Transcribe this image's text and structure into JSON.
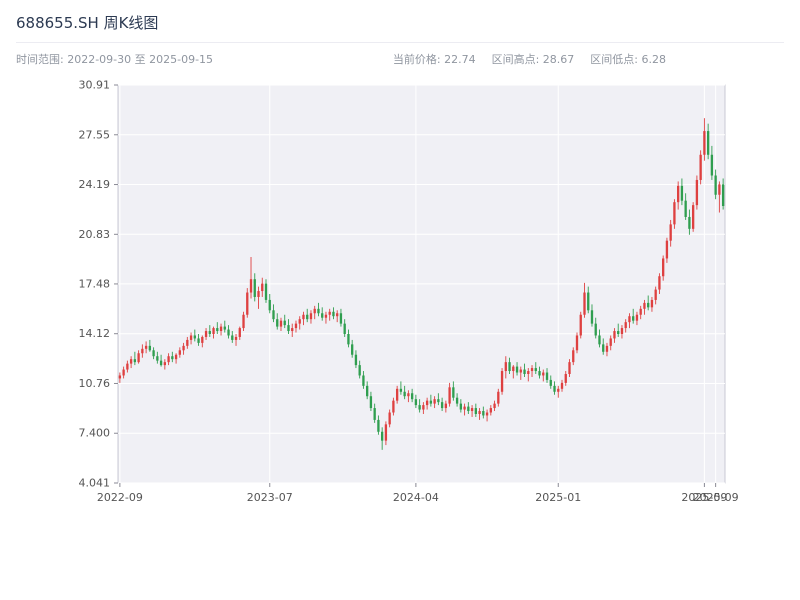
{
  "header": {
    "title": "688655.SH 周K线图",
    "range_label": "时间范围: 2022-09-30 至 2025-09-15",
    "stats": [
      "当前价格: 22.74",
      "区间高点: 28.67",
      "区间低点: 6.28"
    ]
  },
  "chart_data": {
    "type": "candlestick",
    "title": "688655.SH 周K线图",
    "symbol": "688655.SH",
    "interval": "weekly",
    "current_price": 22.74,
    "range_high": 28.67,
    "range_low": 6.28,
    "date_start": "2022-09-30",
    "date_end": "2025-09-15",
    "ylim": [
      4.041,
      30.91
    ],
    "y_ticks": [
      "30.91",
      "27.55",
      "24.19",
      "20.83",
      "17.48",
      "14.12",
      "10.76",
      "7.400",
      "4.041"
    ],
    "y_tick_values": [
      30.91,
      27.55,
      24.19,
      20.83,
      17.48,
      14.12,
      10.76,
      7.4,
      4.041
    ],
    "x_ticks": [
      {
        "index": 0,
        "label": "2022-09"
      },
      {
        "index": 40,
        "label": "2023-07"
      },
      {
        "index": 79,
        "label": "2024-04"
      },
      {
        "index": 117,
        "label": "2025-01"
      },
      {
        "index": 156,
        "label": "2025-09"
      },
      {
        "index": 159,
        "label": "2025-09"
      }
    ],
    "grid": true,
    "legend": false,
    "colors": {
      "up": "#de4040",
      "down": "#2f9e4f",
      "plot_bg": "#f0f0f5",
      "grid": "#ffffff",
      "axis": "#c9c9d4",
      "tick_text": "#555555",
      "title_text": "#2c3a52",
      "subtitle_text": "#9096a0"
    },
    "candles": [
      [
        11.1,
        11.5,
        10.8,
        11.3
      ],
      [
        11.3,
        11.9,
        11.1,
        11.7
      ],
      [
        11.7,
        12.3,
        11.5,
        12.1
      ],
      [
        12.1,
        12.6,
        11.8,
        12.4
      ],
      [
        12.4,
        12.9,
        12.0,
        12.2
      ],
      [
        12.2,
        13.0,
        12.1,
        12.8
      ],
      [
        12.8,
        13.4,
        12.5,
        13.1
      ],
      [
        13.1,
        13.6,
        12.8,
        13.3
      ],
      [
        13.3,
        13.7,
        12.9,
        13.0
      ],
      [
        13.0,
        13.2,
        12.4,
        12.6
      ],
      [
        12.6,
        12.9,
        12.1,
        12.3
      ],
      [
        12.3,
        12.7,
        11.9,
        12.0
      ],
      [
        12.0,
        12.4,
        11.7,
        12.2
      ],
      [
        12.2,
        12.8,
        12.0,
        12.6
      ],
      [
        12.6,
        12.9,
        12.2,
        12.4
      ],
      [
        12.4,
        12.8,
        12.1,
        12.7
      ],
      [
        12.7,
        13.2,
        12.5,
        13.0
      ],
      [
        13.0,
        13.5,
        12.7,
        13.3
      ],
      [
        13.3,
        13.9,
        13.1,
        13.7
      ],
      [
        13.7,
        14.2,
        13.4,
        14.0
      ],
      [
        14.0,
        14.4,
        13.6,
        13.8
      ],
      [
        13.8,
        14.1,
        13.3,
        13.5
      ],
      [
        13.5,
        14.0,
        13.2,
        13.9
      ],
      [
        13.9,
        14.5,
        13.7,
        14.3
      ],
      [
        14.3,
        14.7,
        13.9,
        14.1
      ],
      [
        14.1,
        14.6,
        13.8,
        14.5
      ],
      [
        14.5,
        14.9,
        14.1,
        14.3
      ],
      [
        14.3,
        14.8,
        14.0,
        14.6
      ],
      [
        14.6,
        15.0,
        14.2,
        14.4
      ],
      [
        14.4,
        14.7,
        13.8,
        14.0
      ],
      [
        14.0,
        14.3,
        13.5,
        13.7
      ],
      [
        13.7,
        14.1,
        13.3,
        13.9
      ],
      [
        13.9,
        14.6,
        13.7,
        14.5
      ],
      [
        14.5,
        15.6,
        14.3,
        15.4
      ],
      [
        15.4,
        17.2,
        15.2,
        16.9
      ],
      [
        16.9,
        19.3,
        16.5,
        17.8
      ],
      [
        17.8,
        18.2,
        16.3,
        16.6
      ],
      [
        16.6,
        17.3,
        15.8,
        17.0
      ],
      [
        17.0,
        17.9,
        16.6,
        17.5
      ],
      [
        17.5,
        17.8,
        16.2,
        16.4
      ],
      [
        16.4,
        16.8,
        15.5,
        15.7
      ],
      [
        15.7,
        16.1,
        14.9,
        15.1
      ],
      [
        15.1,
        15.5,
        14.4,
        14.6
      ],
      [
        14.6,
        15.2,
        14.3,
        15.0
      ],
      [
        15.0,
        15.4,
        14.5,
        14.7
      ],
      [
        14.7,
        15.1,
        14.1,
        14.3
      ],
      [
        14.3,
        14.8,
        13.9,
        14.5
      ],
      [
        14.5,
        15.0,
        14.2,
        14.8
      ],
      [
        14.8,
        15.3,
        14.4,
        15.1
      ],
      [
        15.1,
        15.6,
        14.7,
        15.4
      ],
      [
        15.4,
        15.8,
        14.9,
        15.1
      ],
      [
        15.1,
        15.7,
        14.8,
        15.5
      ],
      [
        15.5,
        16.0,
        15.1,
        15.8
      ],
      [
        15.8,
        16.2,
        15.3,
        15.5
      ],
      [
        15.5,
        15.9,
        15.0,
        15.2
      ],
      [
        15.2,
        15.6,
        14.8,
        15.4
      ],
      [
        15.4,
        15.8,
        15.0,
        15.6
      ],
      [
        15.6,
        15.9,
        15.1,
        15.3
      ],
      [
        15.3,
        15.7,
        14.9,
        15.5
      ],
      [
        15.5,
        15.8,
        14.6,
        14.8
      ],
      [
        14.8,
        15.1,
        13.9,
        14.1
      ],
      [
        14.1,
        14.4,
        13.2,
        13.4
      ],
      [
        13.4,
        13.7,
        12.5,
        12.7
      ],
      [
        12.7,
        13.0,
        11.8,
        12.0
      ],
      [
        12.0,
        12.3,
        11.1,
        11.3
      ],
      [
        11.3,
        11.6,
        10.4,
        10.6
      ],
      [
        10.6,
        10.9,
        9.7,
        9.9
      ],
      [
        9.9,
        10.2,
        8.9,
        9.1
      ],
      [
        9.1,
        9.4,
        8.1,
        8.3
      ],
      [
        8.3,
        8.6,
        7.3,
        7.5
      ],
      [
        7.5,
        7.8,
        6.28,
        6.9
      ],
      [
        6.9,
        8.2,
        6.6,
        8.0
      ],
      [
        8.0,
        9.0,
        7.8,
        8.8
      ],
      [
        8.8,
        9.8,
        8.6,
        9.6
      ],
      [
        9.6,
        10.6,
        9.4,
        10.4
      ],
      [
        10.4,
        10.9,
        10.0,
        10.2
      ],
      [
        10.2,
        10.6,
        9.7,
        9.9
      ],
      [
        9.9,
        10.3,
        9.5,
        10.1
      ],
      [
        10.1,
        10.4,
        9.5,
        9.7
      ],
      [
        9.7,
        10.0,
        9.1,
        9.3
      ],
      [
        9.3,
        9.7,
        8.8,
        9.0
      ],
      [
        9.0,
        9.5,
        8.7,
        9.3
      ],
      [
        9.3,
        9.8,
        9.0,
        9.6
      ],
      [
        9.6,
        10.0,
        9.2,
        9.4
      ],
      [
        9.4,
        9.9,
        9.1,
        9.7
      ],
      [
        9.7,
        10.1,
        9.3,
        9.5
      ],
      [
        9.5,
        9.8,
        8.9,
        9.1
      ],
      [
        9.1,
        9.6,
        8.8,
        9.4
      ],
      [
        9.4,
        10.8,
        9.2,
        10.5
      ],
      [
        10.5,
        10.9,
        9.6,
        9.8
      ],
      [
        9.8,
        10.1,
        9.2,
        9.4
      ],
      [
        9.4,
        9.7,
        8.8,
        9.0
      ],
      [
        9.0,
        9.4,
        8.6,
        9.2
      ],
      [
        9.2,
        9.5,
        8.7,
        8.9
      ],
      [
        8.9,
        9.3,
        8.5,
        9.1
      ],
      [
        9.1,
        9.4,
        8.5,
        8.7
      ],
      [
        8.7,
        9.1,
        8.3,
        8.9
      ],
      [
        8.9,
        9.2,
        8.4,
        8.6
      ],
      [
        8.6,
        9.0,
        8.2,
        8.8
      ],
      [
        8.8,
        9.3,
        8.6,
        9.1
      ],
      [
        9.1,
        9.6,
        8.9,
        9.4
      ],
      [
        9.4,
        10.4,
        9.2,
        10.2
      ],
      [
        10.2,
        11.8,
        10.0,
        11.6
      ],
      [
        11.6,
        12.6,
        11.1,
        12.2
      ],
      [
        12.2,
        12.5,
        11.4,
        11.6
      ],
      [
        11.6,
        12.0,
        11.1,
        11.9
      ],
      [
        11.9,
        12.2,
        11.3,
        11.5
      ],
      [
        11.5,
        11.9,
        11.0,
        11.7
      ],
      [
        11.7,
        12.1,
        11.2,
        11.4
      ],
      [
        11.4,
        11.8,
        10.9,
        11.6
      ],
      [
        11.6,
        12.0,
        11.2,
        11.8
      ],
      [
        11.8,
        12.2,
        11.4,
        11.6
      ],
      [
        11.6,
        11.9,
        11.1,
        11.3
      ],
      [
        11.3,
        11.7,
        10.9,
        11.5
      ],
      [
        11.5,
        11.8,
        10.8,
        11.0
      ],
      [
        11.0,
        11.3,
        10.4,
        10.6
      ],
      [
        10.6,
        10.9,
        10.0,
        10.2
      ],
      [
        10.2,
        10.6,
        9.8,
        10.4
      ],
      [
        10.4,
        11.0,
        10.2,
        10.8
      ],
      [
        10.8,
        11.6,
        10.6,
        11.4
      ],
      [
        11.4,
        12.4,
        11.2,
        12.2
      ],
      [
        12.2,
        13.2,
        12.0,
        13.0
      ],
      [
        13.0,
        14.2,
        12.8,
        14.0
      ],
      [
        14.0,
        15.6,
        13.8,
        15.4
      ],
      [
        15.4,
        17.55,
        15.2,
        16.9
      ],
      [
        16.9,
        17.3,
        15.5,
        15.7
      ],
      [
        15.7,
        16.1,
        14.6,
        14.8
      ],
      [
        14.8,
        15.2,
        13.8,
        14.0
      ],
      [
        14.0,
        14.4,
        13.2,
        13.4
      ],
      [
        13.4,
        13.8,
        12.7,
        12.9
      ],
      [
        12.9,
        13.5,
        12.6,
        13.3
      ],
      [
        13.3,
        14.0,
        13.0,
        13.8
      ],
      [
        13.8,
        14.5,
        13.5,
        14.3
      ],
      [
        14.3,
        14.8,
        13.9,
        14.1
      ],
      [
        14.1,
        14.7,
        13.8,
        14.5
      ],
      [
        14.5,
        15.1,
        14.2,
        14.9
      ],
      [
        14.9,
        15.5,
        14.5,
        15.3
      ],
      [
        15.3,
        15.8,
        14.8,
        15.0
      ],
      [
        15.0,
        15.6,
        14.7,
        15.4
      ],
      [
        15.4,
        16.0,
        15.1,
        15.8
      ],
      [
        15.8,
        16.4,
        15.4,
        16.2
      ],
      [
        16.2,
        16.7,
        15.7,
        15.9
      ],
      [
        15.9,
        16.6,
        15.6,
        16.4
      ],
      [
        16.4,
        17.3,
        16.1,
        17.1
      ],
      [
        17.1,
        18.2,
        16.8,
        18.0
      ],
      [
        18.0,
        19.4,
        17.7,
        19.2
      ],
      [
        19.2,
        20.6,
        18.9,
        20.4
      ],
      [
        20.4,
        21.8,
        20.0,
        21.5
      ],
      [
        21.5,
        23.2,
        21.2,
        23.0
      ],
      [
        23.0,
        24.4,
        22.5,
        24.1
      ],
      [
        24.1,
        24.6,
        22.8,
        23.1
      ],
      [
        23.1,
        23.6,
        21.8,
        22.0
      ],
      [
        22.0,
        22.5,
        20.8,
        21.2
      ],
      [
        21.2,
        23.0,
        21.0,
        22.8
      ],
      [
        22.8,
        24.8,
        22.5,
        24.5
      ],
      [
        24.5,
        26.5,
        24.2,
        26.2
      ],
      [
        26.2,
        28.67,
        25.8,
        27.8
      ],
      [
        27.8,
        28.3,
        25.9,
        26.2
      ],
      [
        26.2,
        26.8,
        24.5,
        24.8
      ],
      [
        24.8,
        25.2,
        23.2,
        23.5
      ],
      [
        23.5,
        24.4,
        22.3,
        24.2
      ],
      [
        24.2,
        24.6,
        22.5,
        22.74
      ]
    ]
  }
}
